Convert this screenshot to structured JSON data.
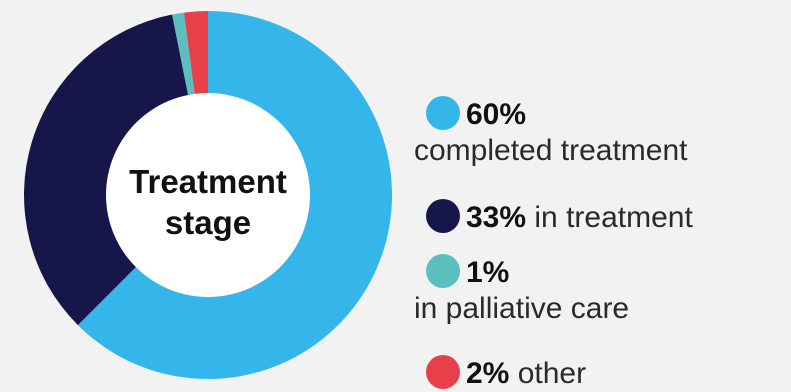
{
  "chart_data": {
    "type": "pie",
    "center_label": [
      "Treatment",
      "stage"
    ],
    "categories": [
      "completed treatment",
      "in treatment",
      "in palliative care",
      "other"
    ],
    "values": [
      60,
      33,
      1,
      2
    ],
    "labels": [
      "60%",
      "33%",
      "1%",
      "2%"
    ],
    "colors": [
      "#35b6ea",
      "#16164a",
      "#5cbfbf",
      "#e8404a"
    ]
  },
  "legend": [
    {
      "pct": "60%",
      "text": "completed treatment",
      "wrap": true
    },
    {
      "pct": "33%",
      "text": "in treatment",
      "wrap": false
    },
    {
      "pct": "1%",
      "text": "in palliative care",
      "wrap": true
    },
    {
      "pct": "2%",
      "text": "other",
      "wrap": false
    }
  ]
}
